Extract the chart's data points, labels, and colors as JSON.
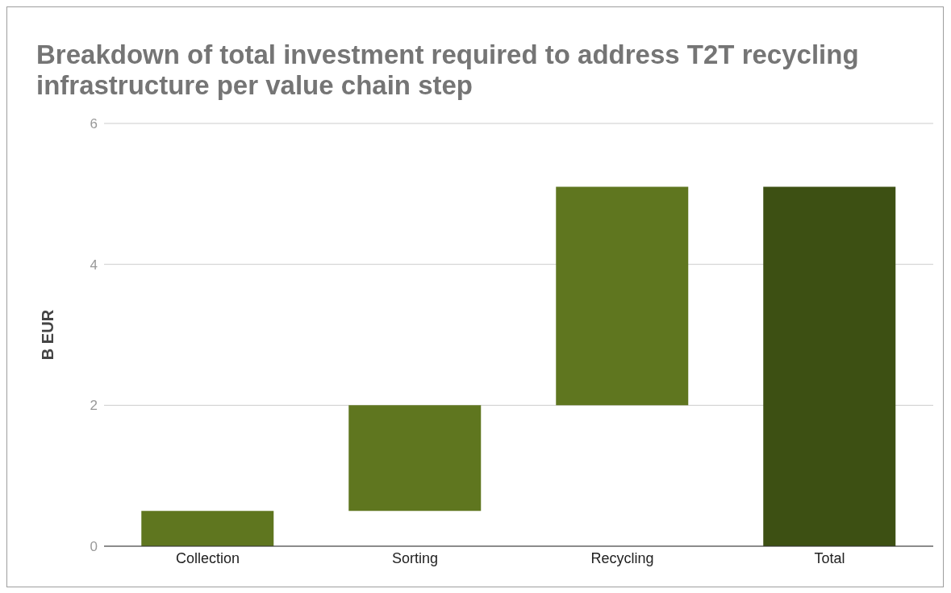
{
  "chart_data": {
    "type": "bar",
    "title": "Breakdown of total investment required to address T2T recycling infrastructure per value chain step",
    "ylabel": "B EUR",
    "categories": [
      "Collection",
      "Sorting",
      "Recycling",
      "Total"
    ],
    "values": [
      0.5,
      1.5,
      3.1,
      5.1
    ],
    "base": [
      0,
      0.5,
      2,
      0
    ],
    "colors": [
      "#5f761f",
      "#5f761f",
      "#5f761f",
      "#3d5013"
    ],
    "ylim": [
      0,
      6
    ],
    "yticks": [
      0,
      2,
      4,
      6
    ],
    "grid": "y",
    "legend": false
  }
}
